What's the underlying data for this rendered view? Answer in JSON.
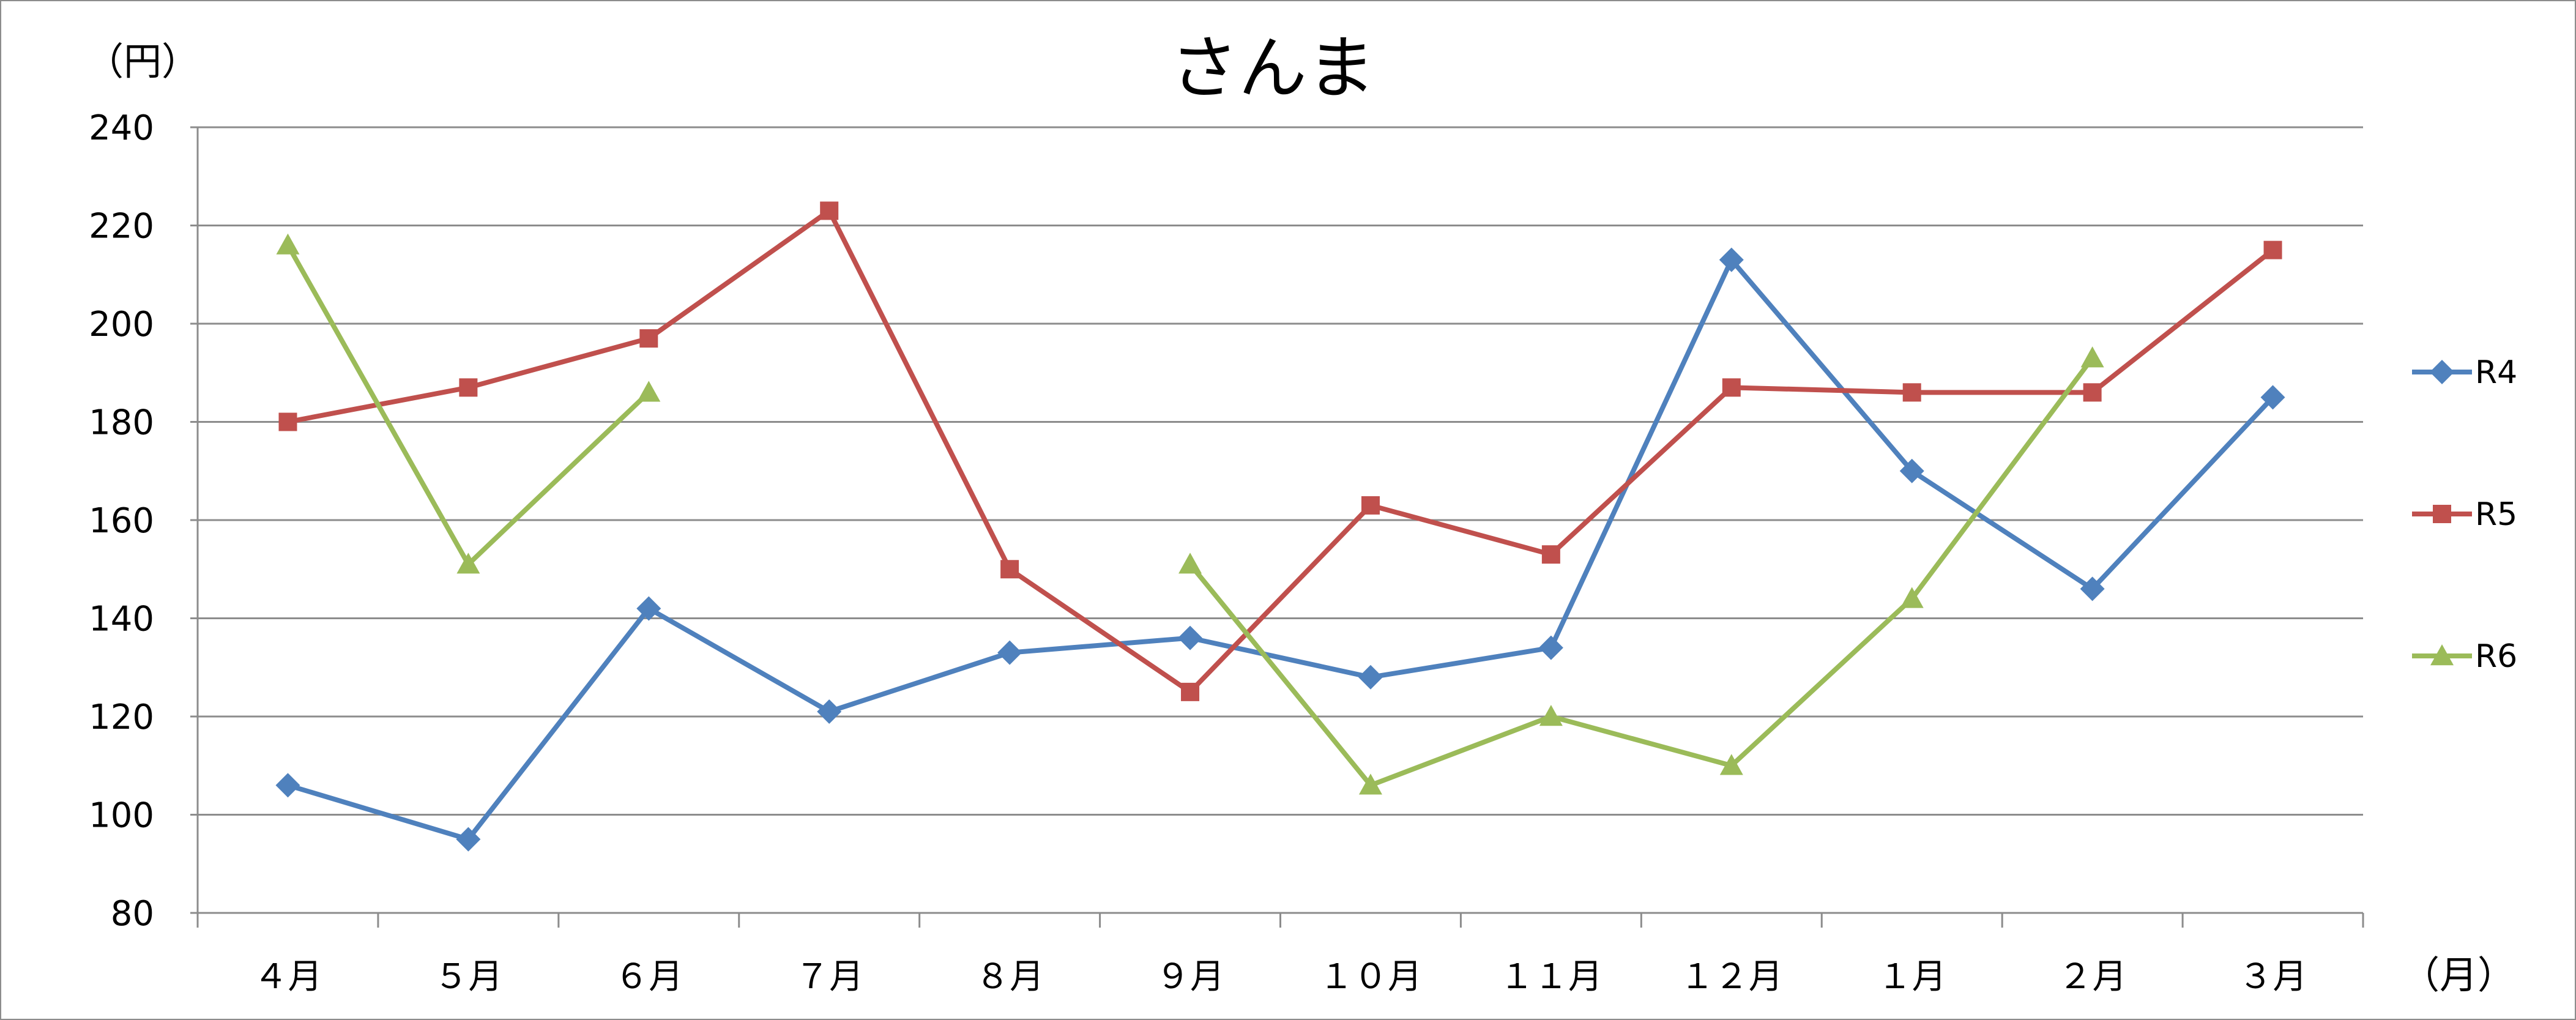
{
  "chart_data": {
    "type": "line",
    "title": "さんま",
    "ylabel": "（円）",
    "xlabel": "（月）",
    "ylim": [
      80,
      240
    ],
    "yticks": [
      80,
      100,
      120,
      140,
      160,
      180,
      200,
      220,
      240
    ],
    "categories": [
      "４月",
      "５月",
      "６月",
      "７月",
      "８月",
      "９月",
      "１０月",
      "１１月",
      "１２月",
      "１月",
      "２月",
      "３月"
    ],
    "grid": "horizontal",
    "legend_position": "right",
    "series": [
      {
        "name": "R4",
        "color": "#4f81bd",
        "marker": "diamond",
        "values": [
          106,
          95,
          142,
          121,
          133,
          136,
          128,
          134,
          213,
          170,
          146,
          185
        ]
      },
      {
        "name": "R5",
        "color": "#c0504d",
        "marker": "square",
        "values": [
          180,
          187,
          197,
          223,
          150,
          125,
          163,
          153,
          187,
          186,
          186,
          215
        ]
      },
      {
        "name": "R6",
        "color": "#9bbb59",
        "marker": "triangle",
        "values": [
          216,
          151,
          186,
          null,
          null,
          151,
          106,
          120,
          110,
          144,
          193,
          null
        ]
      }
    ]
  }
}
